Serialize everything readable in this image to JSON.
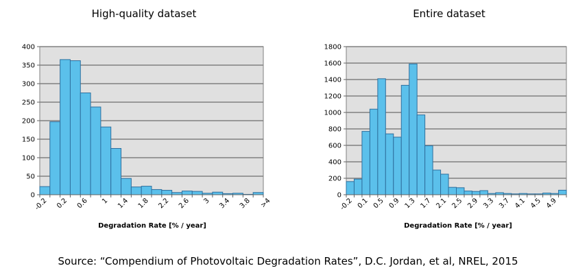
{
  "colors": {
    "bar": "#5bc0eb",
    "bar_stroke": "#2e6f9e",
    "plot_bg": "#e0e0e0",
    "grid": "#808080"
  },
  "source": "Source:  “Compendium of Photovoltaic Degradation Rates”, D.C. Jordan, et al, NREL, 2015",
  "chart_data": [
    {
      "type": "bar",
      "title": "High-quality dataset",
      "xlabel": "Degradation Rate [% / year]",
      "ylabel": "",
      "ylim": [
        0,
        400
      ],
      "yticks": [
        "0",
        "50",
        "100",
        "150",
        "200",
        "250",
        "300",
        "350",
        "400"
      ],
      "xtick_labels": [
        "-0.2",
        "0.2",
        "0.6",
        "1",
        "1.4",
        "1.8",
        "2.2",
        "2.6",
        "3",
        "3.4",
        "3.8",
        ">4"
      ],
      "xtick_every": 2,
      "values": [
        22,
        197,
        365,
        362,
        275,
        237,
        183,
        125,
        44,
        21,
        23,
        14,
        12,
        6,
        10,
        9,
        4,
        7,
        3,
        4,
        1,
        6
      ]
    },
    {
      "type": "bar",
      "title": "Entire dataset",
      "xlabel": "Degradation Rate [% / year]",
      "ylabel": "",
      "ylim": [
        0,
        1800
      ],
      "yticks": [
        "0",
        "200",
        "400",
        "600",
        "800",
        "1000",
        "1200",
        "1400",
        "1600",
        "1800"
      ],
      "xtick_labels": [
        "-0.2",
        "0.1",
        "0.5",
        "0.9",
        "1.3",
        "1.7",
        "2.1",
        "2.5",
        "2.9",
        "3.3",
        "3.7",
        "4.1",
        "4.5",
        "4.9"
      ],
      "xtick_every": 2,
      "values": [
        160,
        190,
        770,
        1040,
        1410,
        740,
        700,
        1330,
        1590,
        970,
        595,
        300,
        250,
        90,
        85,
        45,
        40,
        50,
        15,
        25,
        15,
        10,
        15,
        10,
        10,
        20,
        15,
        55
      ]
    }
  ]
}
